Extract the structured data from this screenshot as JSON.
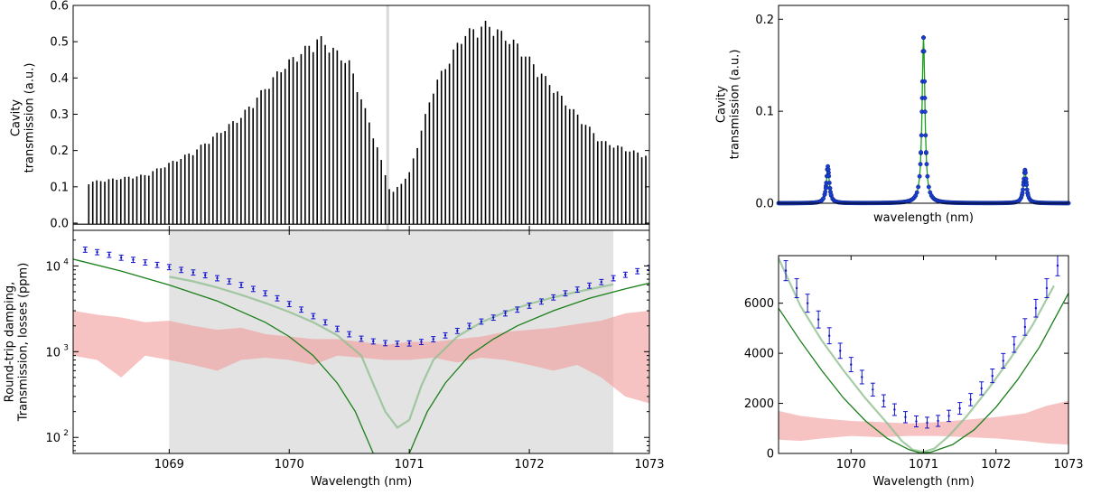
{
  "chart_data": [
    {
      "id": "top-left",
      "type": "line",
      "title": "",
      "xlabel": "",
      "ylabel": [
        "Cavity",
        "transmission (a.u.)"
      ],
      "xlim": [
        1068.2,
        1073.0
      ],
      "ylim": [
        -0.02,
        0.6
      ],
      "yticks": [
        0.0,
        0.1,
        0.2,
        0.3,
        0.4,
        0.5,
        0.6
      ],
      "yticklabels": [
        "0.0",
        "0.1",
        "0.2",
        "0.3",
        "0.4",
        "0.5",
        "0.6"
      ],
      "grid": false,
      "comb": {
        "n_lines": 140,
        "x_start": 1068.33,
        "x_end": 1072.97,
        "peak_envelope": [
          {
            "x": 1068.33,
            "y": 0.115
          },
          {
            "x": 1068.8,
            "y": 0.135
          },
          {
            "x": 1069.2,
            "y": 0.2
          },
          {
            "x": 1069.6,
            "y": 0.3
          },
          {
            "x": 1069.95,
            "y": 0.44
          },
          {
            "x": 1070.25,
            "y": 0.52
          },
          {
            "x": 1070.5,
            "y": 0.45
          },
          {
            "x": 1070.7,
            "y": 0.25
          },
          {
            "x": 1070.85,
            "y": 0.08
          },
          {
            "x": 1071.0,
            "y": 0.14
          },
          {
            "x": 1071.2,
            "y": 0.38
          },
          {
            "x": 1071.45,
            "y": 0.53
          },
          {
            "x": 1071.65,
            "y": 0.56
          },
          {
            "x": 1071.9,
            "y": 0.5
          },
          {
            "x": 1072.3,
            "y": 0.34
          },
          {
            "x": 1072.6,
            "y": 0.23
          },
          {
            "x": 1072.97,
            "y": 0.19
          }
        ]
      },
      "vertical_marker_x": 1070.82
    },
    {
      "id": "bottom-left",
      "type": "line",
      "title": "",
      "xlabel": "Wavelength (nm)",
      "ylabel": [
        "Round-trip damping,",
        "Transmission, losses (ppm)"
      ],
      "xlim": [
        1068.2,
        1073.0
      ],
      "ylim": [
        65,
        26000
      ],
      "yscale": "log",
      "yticks": [
        100,
        1000,
        10000
      ],
      "yticklabels": [
        "10",
        "10",
        "10"
      ],
      "ytick_exponents": [
        "2",
        "3",
        "4"
      ],
      "xticks": [
        1069,
        1070,
        1071,
        1072,
        1073
      ],
      "xticklabels": [
        "1069",
        "1070",
        "1071",
        "1072",
        "1073"
      ],
      "grid": false,
      "shaded_region": [
        1069.0,
        1072.7
      ],
      "series": [
        {
          "kind": "errorbar",
          "color": "#1010d0",
          "points": [
            [
              1068.3,
              15500
            ],
            [
              1068.4,
              14500
            ],
            [
              1068.5,
              13500
            ],
            [
              1068.6,
              12500
            ],
            [
              1068.7,
              11800
            ],
            [
              1068.8,
              11000
            ],
            [
              1068.9,
              10300
            ],
            [
              1069.0,
              9700
            ],
            [
              1069.1,
              9000
            ],
            [
              1069.2,
              8400
            ],
            [
              1069.3,
              7800
            ],
            [
              1069.4,
              7200
            ],
            [
              1069.5,
              6600
            ],
            [
              1069.6,
              6000
            ],
            [
              1069.7,
              5400
            ],
            [
              1069.8,
              4800
            ],
            [
              1069.9,
              4200
            ],
            [
              1070.0,
              3600
            ],
            [
              1070.1,
              3100
            ],
            [
              1070.2,
              2600
            ],
            [
              1070.3,
              2200
            ],
            [
              1070.4,
              1850
            ],
            [
              1070.5,
              1600
            ],
            [
              1070.6,
              1420
            ],
            [
              1070.7,
              1320
            ],
            [
              1070.8,
              1260
            ],
            [
              1070.9,
              1240
            ],
            [
              1071.0,
              1250
            ],
            [
              1071.1,
              1300
            ],
            [
              1071.2,
              1400
            ],
            [
              1071.3,
              1550
            ],
            [
              1071.4,
              1750
            ],
            [
              1071.5,
              2000
            ],
            [
              1071.6,
              2250
            ],
            [
              1071.7,
              2500
            ],
            [
              1071.8,
              2800
            ],
            [
              1071.9,
              3100
            ],
            [
              1072.0,
              3450
            ],
            [
              1072.1,
              3850
            ],
            [
              1072.2,
              4300
            ],
            [
              1072.3,
              4800
            ],
            [
              1072.4,
              5300
            ],
            [
              1072.5,
              5900
            ],
            [
              1072.6,
              6500
            ],
            [
              1072.7,
              7200
            ],
            [
              1072.8,
              7900
            ],
            [
              1072.9,
              8700
            ],
            [
              1073.0,
              9500
            ]
          ]
        },
        {
          "kind": "band",
          "color": "#f29a9a",
          "points": [
            [
              1068.2,
              900,
              3000
            ],
            [
              1068.4,
              800,
              2700
            ],
            [
              1068.6,
              500,
              2500
            ],
            [
              1068.8,
              900,
              2200
            ],
            [
              1069.0,
              800,
              2300
            ],
            [
              1069.2,
              700,
              2000
            ],
            [
              1069.4,
              600,
              1800
            ],
            [
              1069.6,
              800,
              1900
            ],
            [
              1069.8,
              850,
              1600
            ],
            [
              1070.0,
              800,
              1500
            ],
            [
              1070.2,
              700,
              1400
            ],
            [
              1070.4,
              900,
              1400
            ],
            [
              1070.6,
              850,
              1300
            ],
            [
              1070.8,
              800,
              1200
            ],
            [
              1071.0,
              800,
              1300
            ],
            [
              1071.2,
              850,
              1300
            ],
            [
              1071.4,
              750,
              1400
            ],
            [
              1071.6,
              850,
              1500
            ],
            [
              1071.8,
              800,
              1700
            ],
            [
              1072.0,
              700,
              1800
            ],
            [
              1072.2,
              600,
              1900
            ],
            [
              1072.4,
              700,
              2100
            ],
            [
              1072.6,
              500,
              2300
            ],
            [
              1072.8,
              300,
              2800
            ],
            [
              1073.0,
              250,
              3000
            ]
          ]
        },
        {
          "kind": "line",
          "color": "#8fbf8f",
          "points": [
            [
              1069.0,
              7500
            ],
            [
              1069.2,
              6600
            ],
            [
              1069.4,
              5600
            ],
            [
              1069.6,
              4600
            ],
            [
              1069.8,
              3700
            ],
            [
              1070.0,
              2900
            ],
            [
              1070.2,
              2200
            ],
            [
              1070.4,
              1550
            ],
            [
              1070.6,
              900
            ],
            [
              1070.7,
              420
            ],
            [
              1070.8,
              200
            ],
            [
              1070.9,
              130
            ],
            [
              1071.0,
              160
            ],
            [
              1071.1,
              400
            ],
            [
              1071.2,
              800
            ],
            [
              1071.4,
              1500
            ],
            [
              1071.6,
              2200
            ],
            [
              1071.8,
              2900
            ],
            [
              1072.0,
              3600
            ],
            [
              1072.2,
              4300
            ],
            [
              1072.4,
              5000
            ],
            [
              1072.6,
              5700
            ],
            [
              1072.7,
              6100
            ]
          ]
        },
        {
          "kind": "line",
          "color": "#1a7f1a",
          "points": [
            [
              1068.2,
              12000
            ],
            [
              1068.6,
              8700
            ],
            [
              1069.0,
              6000
            ],
            [
              1069.4,
              3900
            ],
            [
              1069.8,
              2200
            ],
            [
              1070.0,
              1500
            ],
            [
              1070.2,
              900
            ],
            [
              1070.4,
              430
            ],
            [
              1070.55,
              200
            ],
            [
              1070.65,
              95
            ],
            [
              1070.7,
              65
            ]
          ]
        },
        {
          "kind": "line",
          "color": "#1a7f1a",
          "points": [
            [
              1071.0,
              65
            ],
            [
              1071.05,
              95
            ],
            [
              1071.15,
              200
            ],
            [
              1071.3,
              430
            ],
            [
              1071.5,
              900
            ],
            [
              1071.7,
              1400
            ],
            [
              1071.9,
              2000
            ],
            [
              1072.2,
              3000
            ],
            [
              1072.5,
              4200
            ],
            [
              1072.8,
              5400
            ],
            [
              1073.0,
              6300
            ]
          ]
        }
      ]
    },
    {
      "id": "top-right",
      "type": "line",
      "title": "",
      "xlabel": "wavelength (nm)",
      "ylabel": [
        "Cavity",
        "transmission (a.u.)"
      ],
      "ylim": [
        0.0,
        0.215
      ],
      "yticks": [
        0.0,
        0.1,
        0.2
      ],
      "yticklabels": [
        "0.0",
        "0.1",
        "0.2"
      ],
      "grid": false,
      "peaks": [
        {
          "center": 0.17,
          "height": 0.04,
          "width": 0.006
        },
        {
          "center": 0.5,
          "height": 0.18,
          "width": 0.006
        },
        {
          "center": 0.85,
          "height": 0.036,
          "width": 0.006
        }
      ]
    },
    {
      "id": "bottom-right",
      "type": "line",
      "title": "",
      "xlabel": "Wavelength (nm)",
      "xlim": [
        1069.0,
        1073.0
      ],
      "ylim": [
        0,
        7900
      ],
      "yticks": [
        0,
        2000,
        4000,
        6000
      ],
      "yticklabels": [
        "0",
        "2000",
        "4000",
        "6000"
      ],
      "xticks": [
        1070,
        1071,
        1072,
        1073
      ],
      "xticklabels": [
        "1070",
        "1071",
        "1072",
        "1073"
      ],
      "grid": false,
      "series": [
        {
          "kind": "errorbar",
          "color": "#1010d0",
          "points": [
            [
              1069.1,
              7300
            ],
            [
              1069.25,
              6600
            ],
            [
              1069.4,
              6000
            ],
            [
              1069.55,
              5350
            ],
            [
              1069.7,
              4700
            ],
            [
              1069.85,
              4100
            ],
            [
              1070.0,
              3550
            ],
            [
              1070.15,
              3050
            ],
            [
              1070.3,
              2550
            ],
            [
              1070.45,
              2100
            ],
            [
              1070.6,
              1750
            ],
            [
              1070.75,
              1450
            ],
            [
              1070.9,
              1280
            ],
            [
              1071.05,
              1230
            ],
            [
              1071.2,
              1300
            ],
            [
              1071.35,
              1500
            ],
            [
              1071.5,
              1800
            ],
            [
              1071.65,
              2150
            ],
            [
              1071.8,
              2600
            ],
            [
              1071.95,
              3100
            ],
            [
              1072.1,
              3700
            ],
            [
              1072.25,
              4350
            ],
            [
              1072.4,
              5050
            ],
            [
              1072.55,
              5800
            ],
            [
              1072.7,
              6600
            ],
            [
              1072.85,
              7500
            ]
          ]
        },
        {
          "kind": "band",
          "color": "#f29a9a",
          "points": [
            [
              1069.0,
              550,
              1700
            ],
            [
              1069.3,
              500,
              1500
            ],
            [
              1069.6,
              600,
              1400
            ],
            [
              1070.0,
              700,
              1300
            ],
            [
              1070.4,
              650,
              1250
            ],
            [
              1070.8,
              700,
              1200
            ],
            [
              1071.2,
              700,
              1250
            ],
            [
              1071.6,
              650,
              1350
            ],
            [
              1072.0,
              600,
              1450
            ],
            [
              1072.4,
              500,
              1600
            ],
            [
              1072.7,
              400,
              1900
            ],
            [
              1073.0,
              350,
              2100
            ]
          ]
        },
        {
          "kind": "line",
          "color": "#8fbf8f",
          "points": [
            [
              1069.0,
              7800
            ],
            [
              1069.3,
              5900
            ],
            [
              1069.6,
              4500
            ],
            [
              1069.9,
              3300
            ],
            [
              1070.2,
              2200
            ],
            [
              1070.5,
              1200
            ],
            [
              1070.7,
              500
            ],
            [
              1070.85,
              150
            ],
            [
              1071.0,
              60
            ],
            [
              1071.15,
              200
            ],
            [
              1071.35,
              700
            ],
            [
              1071.6,
              1500
            ],
            [
              1071.9,
              2600
            ],
            [
              1072.2,
              3800
            ],
            [
              1072.5,
              5100
            ],
            [
              1072.8,
              6700
            ]
          ]
        },
        {
          "kind": "line",
          "color": "#1a7f1a",
          "points": [
            [
              1069.0,
              5800
            ],
            [
              1069.3,
              4500
            ],
            [
              1069.6,
              3300
            ],
            [
              1069.9,
              2200
            ],
            [
              1070.2,
              1300
            ],
            [
              1070.5,
              600
            ],
            [
              1070.8,
              150
            ],
            [
              1070.95,
              20
            ],
            [
              1071.1,
              50
            ],
            [
              1071.4,
              350
            ],
            [
              1071.7,
              950
            ],
            [
              1072.0,
              1850
            ],
            [
              1072.3,
              2950
            ],
            [
              1072.6,
              4250
            ],
            [
              1073.0,
              6400
            ]
          ]
        }
      ]
    }
  ]
}
